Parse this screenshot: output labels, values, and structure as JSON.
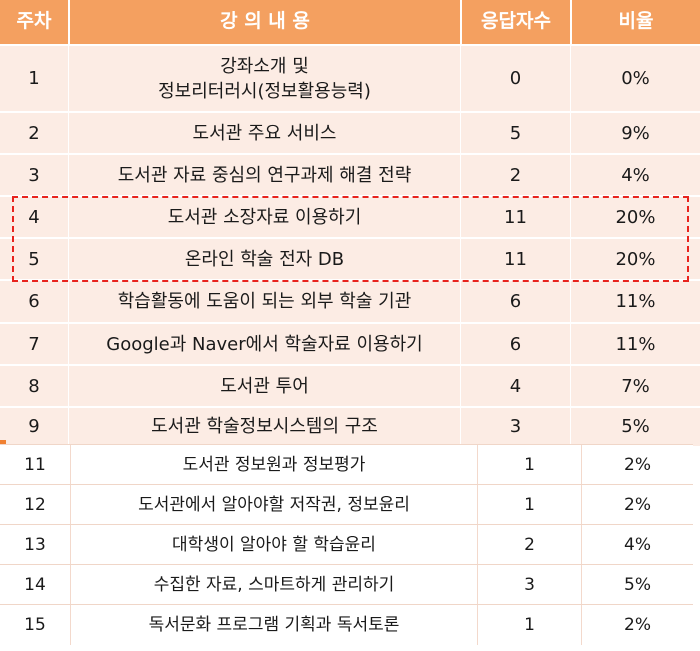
{
  "header": {
    "week": "주차",
    "content": "강 의 내 용",
    "responses": "응답자수",
    "ratio": "비율"
  },
  "rows": [
    {
      "week": "1",
      "content_line1": "강좌소개 및",
      "content_line2": "정보리터러시(정보활용능력)",
      "responses": "0",
      "ratio": "0%"
    },
    {
      "week": "2",
      "content": "도서관 주요 서비스",
      "responses": "5",
      "ratio": "9%"
    },
    {
      "week": "3",
      "content": "도서관 자료 중심의 연구과제 해결 전략",
      "responses": "2",
      "ratio": "4%"
    },
    {
      "week": "4",
      "content": "도서관 소장자료 이용하기",
      "responses": "11",
      "ratio": "20%"
    },
    {
      "week": "5",
      "content": "온라인 학술 전자 DB",
      "responses": "11",
      "ratio": "20%"
    },
    {
      "week": "6",
      "content": "학습활동에 도움이 되는 외부 학술 기관",
      "responses": "6",
      "ratio": "11%"
    },
    {
      "week": "7",
      "content": "Google과 Naver에서 학술자료 이용하기",
      "responses": "6",
      "ratio": "11%"
    },
    {
      "week": "8",
      "content": "도서관 투어",
      "responses": "4",
      "ratio": "7%"
    },
    {
      "week": "9",
      "content": "도서관 학술정보시스템의 구조",
      "responses": "3",
      "ratio": "5%"
    },
    {
      "week": "11",
      "content": "도서관 정보원과 정보평가",
      "responses": "1",
      "ratio": "2%"
    },
    {
      "week": "12",
      "content": "도서관에서 알아야할 저작권, 정보윤리",
      "responses": "1",
      "ratio": "2%"
    },
    {
      "week": "13",
      "content": "대학생이 알아야 할 학습윤리",
      "responses": "2",
      "ratio": "4%"
    },
    {
      "week": "14",
      "content": "수집한 자료, 스마트하게 관리하기",
      "responses": "3",
      "ratio": "5%"
    },
    {
      "week": "15",
      "content": "독서문화 프로그램 기획과 독서토론",
      "responses": "1",
      "ratio": "2%"
    }
  ]
}
